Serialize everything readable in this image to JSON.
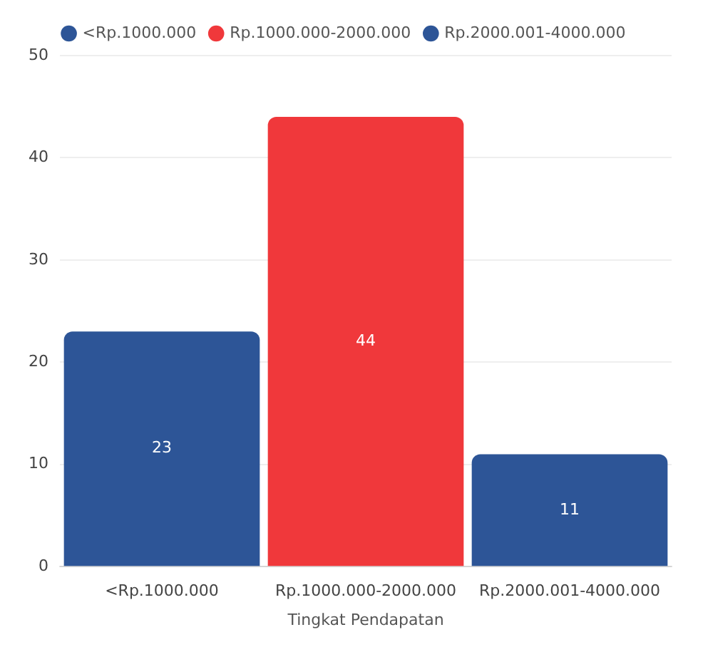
{
  "chart_data": {
    "type": "bar",
    "xlabel": "Tingkat Pendapatan",
    "categories": [
      "<Rp.1000.000",
      "Rp.1000.000-2000.000",
      "Rp.2000.001-4000.000"
    ],
    "series": [
      {
        "name": "<Rp.1000.000",
        "color": "#2d5597",
        "values": [
          23,
          null,
          null
        ]
      },
      {
        "name": "Rp.1000.000-2000.000",
        "color": "#f0383b",
        "values": [
          null,
          44,
          null
        ]
      },
      {
        "name": "Rp.2000.001-4000.000",
        "color": "#2d5597",
        "values": [
          null,
          null,
          11
        ]
      }
    ],
    "ylim": [
      0,
      50
    ],
    "yticks": [
      0,
      10,
      20,
      30,
      40,
      50
    ],
    "grid": "y",
    "legend": "top",
    "data_labels": true
  }
}
